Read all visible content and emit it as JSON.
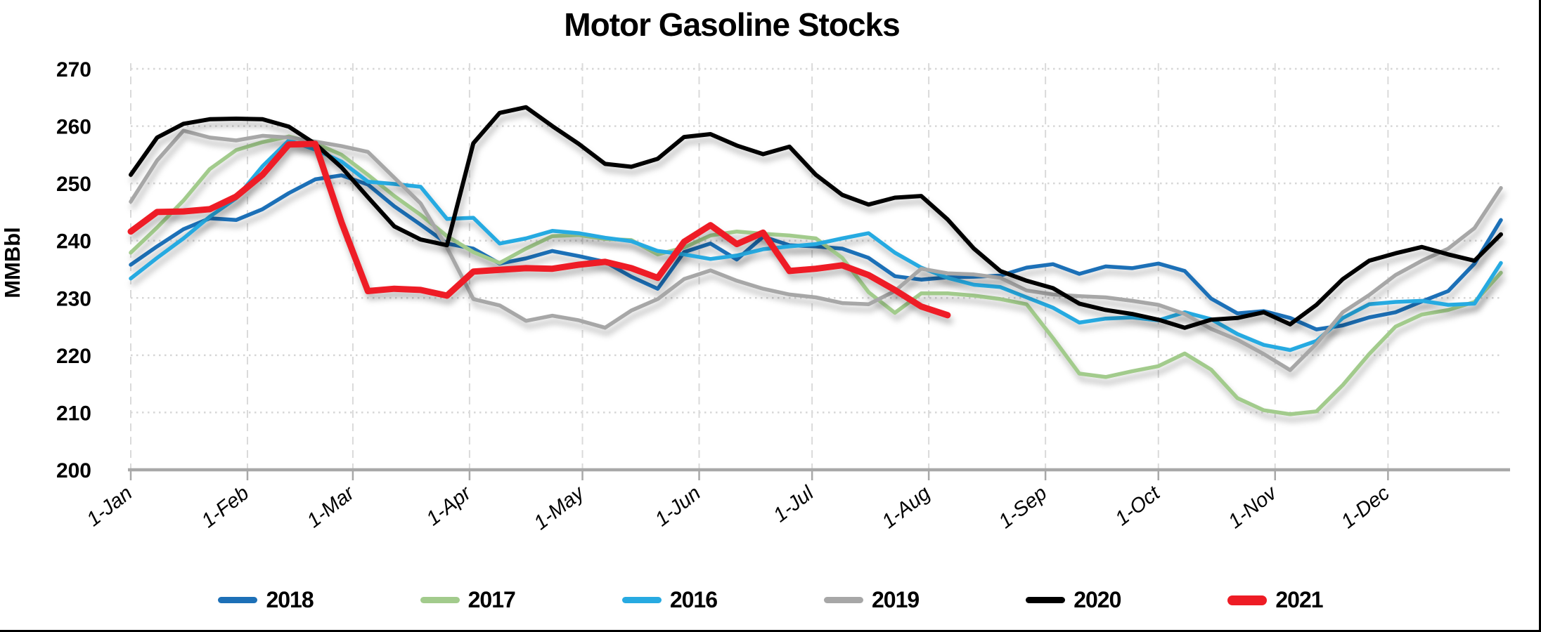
{
  "title": "Motor Gasoline Stocks",
  "y_axis": {
    "label": "MMBbl",
    "min": 200,
    "max": 270,
    "tick_step": 10,
    "tick_labels": [
      "270",
      "260",
      "250",
      "240",
      "230",
      "220",
      "210",
      "200"
    ]
  },
  "x_axis": {
    "tick_labels": [
      "1-Jan",
      "1-Feb",
      "1-Mar",
      "1-Apr",
      "1-May",
      "1-Jun",
      "1-Jul",
      "1-Aug",
      "1-Sep",
      "1-Oct",
      "1-Nov",
      "1-Dec"
    ]
  },
  "legend": {
    "items": [
      "2018",
      "2017",
      "2016",
      "2019",
      "2020",
      "2021"
    ]
  },
  "chart_data": {
    "type": "line",
    "title": "Motor Gasoline Stocks",
    "xlabel": "",
    "ylabel": "MMBbl",
    "ylim": [
      200,
      270
    ],
    "grid": "dotted-horizontal, dashed-vertical-monthly",
    "legend_position": "bottom",
    "x_unit": "weekly, starting 1-Jan, 7-day steps",
    "x_month_ticks": [
      "1-Jan",
      "1-Feb",
      "1-Mar",
      "1-Apr",
      "1-May",
      "1-Jun",
      "1-Jul",
      "1-Aug",
      "1-Sep",
      "1-Oct",
      "1-Nov",
      "1-Dec"
    ],
    "series": [
      {
        "name": "2018",
        "color": "#1D70B7",
        "stroke_width": 5.5,
        "values": [
          235.8,
          239.0,
          242.0,
          243.9,
          243.6,
          245.5,
          248.3,
          250.7,
          251.4,
          249.8,
          246.0,
          242.8,
          239.5,
          238.6,
          236.0,
          236.9,
          238.2,
          237.3,
          236.3,
          233.7,
          231.6,
          238.0,
          239.5,
          236.7,
          240.7,
          239.2,
          239.0,
          238.6,
          237.0,
          233.8,
          233.2,
          233.6,
          233.7,
          233.9,
          235.3,
          235.9,
          234.2,
          235.5,
          235.2,
          236.0,
          234.7,
          229.9,
          227.3,
          227.7,
          226.5,
          224.5,
          225.2,
          226.6,
          227.5,
          229.4,
          231.2,
          236.0,
          243.6
        ]
      },
      {
        "name": "2017",
        "color": "#A2CB8C",
        "stroke_width": 5.5,
        "values": [
          237.9,
          242.3,
          247.0,
          252.5,
          255.8,
          257.2,
          258.2,
          257.0,
          255.0,
          251.5,
          247.8,
          244.5,
          240.8,
          238.0,
          236.1,
          238.6,
          240.8,
          241.0,
          240.3,
          240.1,
          237.6,
          238.8,
          240.9,
          241.6,
          241.2,
          240.9,
          240.4,
          237.0,
          231.0,
          227.4,
          230.8,
          230.8,
          230.4,
          229.8,
          228.9,
          223.0,
          216.8,
          216.2,
          217.2,
          218.1,
          220.3,
          217.5,
          212.5,
          210.4,
          209.7,
          210.2,
          214.8,
          220.2,
          225.0,
          227.1,
          227.9,
          229.3,
          234.4
        ]
      },
      {
        "name": "2016",
        "color": "#27AAE1",
        "stroke_width": 5.5,
        "values": [
          233.4,
          237.0,
          240.4,
          244.2,
          247.4,
          253.0,
          257.5,
          255.9,
          253.8,
          250.3,
          249.9,
          249.4,
          243.8,
          244.0,
          239.5,
          240.4,
          241.7,
          241.3,
          240.5,
          239.9,
          238.2,
          237.6,
          236.8,
          237.4,
          238.5,
          239.0,
          239.4,
          240.4,
          241.3,
          237.9,
          235.3,
          233.5,
          232.3,
          231.9,
          230.1,
          228.3,
          225.7,
          226.4,
          226.6,
          226.1,
          227.5,
          226.3,
          223.7,
          221.8,
          220.9,
          222.5,
          226.5,
          228.9,
          229.3,
          229.5,
          228.8,
          229.0,
          236.1
        ]
      },
      {
        "name": "2019",
        "color": "#A7A7A7",
        "stroke_width": 5.5,
        "values": [
          246.8,
          254.0,
          259.2,
          258.0,
          257.5,
          258.3,
          258.0,
          257.3,
          256.5,
          255.5,
          251.0,
          246.5,
          238.8,
          229.8,
          228.7,
          226.0,
          226.9,
          226.1,
          224.8,
          227.8,
          229.8,
          233.3,
          234.8,
          233.0,
          231.6,
          230.6,
          230.1,
          229.1,
          228.9,
          231.2,
          235.1,
          234.3,
          234.1,
          233.5,
          231.3,
          230.6,
          230.3,
          230.1,
          229.5,
          228.8,
          227.2,
          224.6,
          222.7,
          220.2,
          217.4,
          222.0,
          227.5,
          230.5,
          234.0,
          236.5,
          238.6,
          242.2,
          249.2
        ]
      },
      {
        "name": "2020",
        "color": "#000000",
        "stroke_width": 6,
        "values": [
          251.5,
          258.0,
          260.4,
          261.2,
          261.3,
          261.2,
          259.9,
          256.9,
          252.8,
          247.6,
          242.5,
          240.2,
          239.2,
          257.0,
          262.3,
          263.3,
          260.0,
          256.9,
          253.4,
          252.9,
          254.3,
          258.1,
          258.6,
          256.6,
          255.1,
          256.4,
          251.5,
          248.0,
          246.3,
          247.5,
          247.8,
          243.7,
          238.6,
          234.7,
          233.0,
          231.7,
          229.0,
          227.9,
          227.2,
          226.2,
          224.8,
          226.2,
          226.5,
          227.5,
          225.4,
          228.8,
          233.3,
          236.5,
          237.8,
          238.9,
          237.6,
          236.5,
          241.1
        ]
      },
      {
        "name": "2021",
        "color": "#EE1C25",
        "stroke_width": 9,
        "values": [
          241.6,
          245.0,
          245.1,
          245.5,
          247.7,
          251.5,
          256.8,
          256.9,
          243.2,
          231.2,
          231.6,
          231.4,
          230.4,
          234.6,
          234.9,
          235.2,
          235.1,
          235.8,
          236.3,
          235.2,
          233.5,
          239.8,
          242.7,
          239.4,
          241.4,
          234.7,
          235.1,
          235.7,
          234.0,
          231.4,
          228.5,
          227.0
        ]
      }
    ]
  }
}
